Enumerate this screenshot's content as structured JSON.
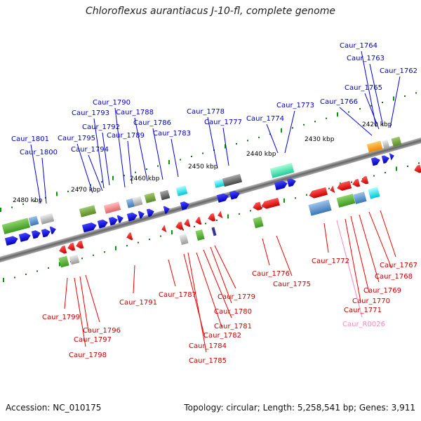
{
  "title": "Chloroflexus aurantiacus J-10-fl, complete genome",
  "accession": "Accession: NC_010175",
  "summary": "Topology: circular; Length: 5,258,541 bp; Genes: 3,911",
  "colors": {
    "forward_gene": "#0000dd",
    "reverse_gene": "#ee0000",
    "forward_label": "#0000cc",
    "reverse_label": "#cc0000",
    "rna_label": "#ff88bb",
    "backbone": "#888888",
    "scale_text": "#000000",
    "green_tick": "#009900"
  },
  "scale_labels": [
    {
      "text": "2480 kbp"
    },
    {
      "text": "2470 kbp"
    },
    {
      "text": "2460 kbp"
    },
    {
      "text": "2450 kbp"
    },
    {
      "text": "2440 kbp"
    },
    {
      "text": "2430 kbp"
    },
    {
      "text": "2420 kbp"
    }
  ],
  "forward_labels": [
    {
      "text": "Caur_1801"
    },
    {
      "text": "Caur_1800"
    },
    {
      "text": "Caur_1795"
    },
    {
      "text": "Caur_1794"
    },
    {
      "text": "Caur_1793"
    },
    {
      "text": "Caur_1792"
    },
    {
      "text": "Caur_1790"
    },
    {
      "text": "Caur_1789"
    },
    {
      "text": "Caur_1788"
    },
    {
      "text": "Caur_1786"
    },
    {
      "text": "Caur_1783"
    },
    {
      "text": "Caur_1778"
    },
    {
      "text": "Caur_1777"
    },
    {
      "text": "Caur_1774"
    },
    {
      "text": "Caur_1773"
    },
    {
      "text": "Caur_1766"
    },
    {
      "text": "Caur_1765"
    },
    {
      "text": "Caur_1764"
    },
    {
      "text": "Caur_1763"
    },
    {
      "text": "Caur_1762"
    }
  ],
  "reverse_labels": [
    {
      "text": "Caur_1799"
    },
    {
      "text": "Caur_1796"
    },
    {
      "text": "Caur_1797"
    },
    {
      "text": "Caur_1798"
    },
    {
      "text": "Caur_1791"
    },
    {
      "text": "Caur_1787"
    },
    {
      "text": "Caur_1784"
    },
    {
      "text": "Caur_1785"
    },
    {
      "text": "Caur_1782"
    },
    {
      "text": "Caur_1781"
    },
    {
      "text": "Caur_1780"
    },
    {
      "text": "Caur_1779"
    },
    {
      "text": "Caur_1776"
    },
    {
      "text": "Caur_1775"
    },
    {
      "text": "Caur_1772"
    },
    {
      "text": "Caur_1767"
    },
    {
      "text": "Caur_1768"
    },
    {
      "text": "Caur_1769"
    },
    {
      "text": "Caur_1770"
    },
    {
      "text": "Caur_1771"
    }
  ],
  "rna_labels": [
    {
      "text": "Caur_R0026"
    }
  ]
}
